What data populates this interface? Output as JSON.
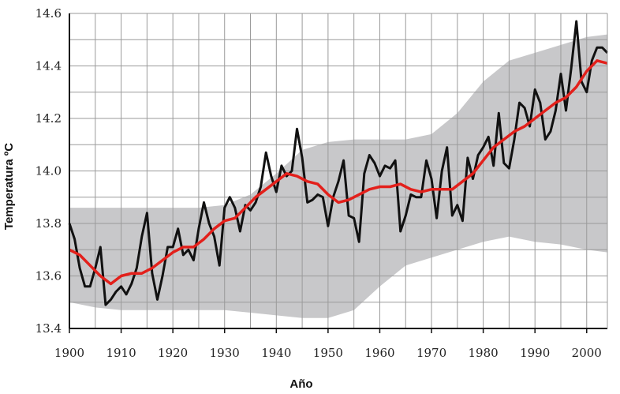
{
  "chart_data": {
    "type": "line",
    "title": "",
    "xlabel": "Año",
    "ylabel": "Temperatura ºC",
    "xlim": [
      1900,
      2004
    ],
    "ylim": [
      13.4,
      14.6
    ],
    "xticks": [
      "1900",
      "1910",
      "1920",
      "1930",
      "1940",
      "1950",
      "1960",
      "1970",
      "1980",
      "1990",
      "2000"
    ],
    "yticks": [
      "13.4",
      "13.6",
      "13.8",
      "14.0",
      "14.2",
      "14.4",
      "14.6"
    ],
    "grid": true,
    "colors": {
      "annual": "#111111",
      "smoothed": "#e3201b",
      "band": "#c8c8ca",
      "grid": "#9a9a9a"
    },
    "band": {
      "x": [
        1900,
        1905,
        1910,
        1915,
        1920,
        1925,
        1930,
        1935,
        1940,
        1945,
        1950,
        1955,
        1960,
        1965,
        1970,
        1975,
        1980,
        1985,
        1990,
        1995,
        2000,
        2004
      ],
      "upper": [
        13.86,
        13.86,
        13.86,
        13.86,
        13.86,
        13.86,
        13.87,
        13.91,
        13.99,
        14.08,
        14.11,
        14.12,
        14.12,
        14.12,
        14.14,
        14.22,
        14.34,
        14.42,
        14.45,
        14.48,
        14.51,
        14.52
      ],
      "lower": [
        13.5,
        13.48,
        13.47,
        13.47,
        13.47,
        13.47,
        13.47,
        13.46,
        13.45,
        13.44,
        13.44,
        13.47,
        13.56,
        13.64,
        13.67,
        13.7,
        13.73,
        13.75,
        13.73,
        13.72,
        13.7,
        13.69
      ]
    },
    "series": [
      {
        "x": [
          1900,
          1901,
          1902,
          1903,
          1904,
          1905,
          1906,
          1907,
          1908,
          1909,
          1910,
          1911,
          1912,
          1913,
          1914,
          1915,
          1916,
          1917,
          1918,
          1919,
          1920,
          1921,
          1922,
          1923,
          1924,
          1925,
          1926,
          1927,
          1928,
          1929,
          1930,
          1931,
          1932,
          1933,
          1934,
          1935,
          1936,
          1937,
          1938,
          1939,
          1940,
          1941,
          1942,
          1943,
          1944,
          1945,
          1946,
          1947,
          1948,
          1949,
          1950,
          1951,
          1952,
          1953,
          1954,
          1955,
          1956,
          1957,
          1958,
          1959,
          1960,
          1961,
          1962,
          1963,
          1964,
          1965,
          1966,
          1967,
          1968,
          1969,
          1970,
          1971,
          1972,
          1973,
          1974,
          1975,
          1976,
          1977,
          1978,
          1979,
          1980,
          1981,
          1982,
          1983,
          1984,
          1985,
          1986,
          1987,
          1988,
          1989,
          1990,
          1991,
          1992,
          1993,
          1994,
          1995,
          1996,
          1997,
          1998,
          1999,
          2000,
          2001,
          2002,
          2003,
          2004
        ],
        "values": [
          13.8,
          13.74,
          13.63,
          13.56,
          13.56,
          13.63,
          13.71,
          13.49,
          13.51,
          13.54,
          13.56,
          13.53,
          13.57,
          13.63,
          13.75,
          13.84,
          13.61,
          13.51,
          13.6,
          13.71,
          13.71,
          13.78,
          13.68,
          13.7,
          13.66,
          13.78,
          13.88,
          13.8,
          13.75,
          13.64,
          13.86,
          13.9,
          13.86,
          13.77,
          13.87,
          13.85,
          13.88,
          13.94,
          14.07,
          13.98,
          13.92,
          14.02,
          13.98,
          14.0,
          14.16,
          14.05,
          13.88,
          13.89,
          13.91,
          13.9,
          13.79,
          13.9,
          13.96,
          14.04,
          13.83,
          13.82,
          13.73,
          13.99,
          14.06,
          14.03,
          13.98,
          14.02,
          14.01,
          14.04,
          13.77,
          13.83,
          13.91,
          13.9,
          13.9,
          14.04,
          13.97,
          13.82,
          14.0,
          14.09,
          13.83,
          13.87,
          13.81,
          14.05,
          13.97,
          14.06,
          14.09,
          14.13,
          14.02,
          14.22,
          14.03,
          14.01,
          14.12,
          14.26,
          14.24,
          14.17,
          14.31,
          14.26,
          14.12,
          14.15,
          14.23,
          14.37,
          14.23,
          14.39,
          14.57,
          14.34,
          14.3,
          14.42,
          14.47,
          14.47,
          14.45
        ]
      },
      {
        "x": [
          1900,
          1902,
          1904,
          1906,
          1908,
          1910,
          1912,
          1914,
          1916,
          1918,
          1920,
          1922,
          1924,
          1926,
          1928,
          1930,
          1932,
          1934,
          1936,
          1938,
          1940,
          1942,
          1944,
          1946,
          1948,
          1950,
          1952,
          1954,
          1956,
          1958,
          1960,
          1962,
          1964,
          1966,
          1968,
          1970,
          1972,
          1974,
          1976,
          1978,
          1980,
          1982,
          1984,
          1986,
          1988,
          1990,
          1992,
          1994,
          1996,
          1998,
          2000,
          2002,
          2004
        ],
        "values": [
          13.7,
          13.68,
          13.64,
          13.6,
          13.57,
          13.6,
          13.61,
          13.61,
          13.63,
          13.66,
          13.69,
          13.71,
          13.71,
          13.74,
          13.78,
          13.81,
          13.82,
          13.86,
          13.9,
          13.93,
          13.96,
          13.99,
          13.98,
          13.96,
          13.95,
          13.91,
          13.88,
          13.89,
          13.91,
          13.93,
          13.94,
          13.94,
          13.95,
          13.93,
          13.92,
          13.93,
          13.93,
          13.93,
          13.96,
          13.99,
          14.04,
          14.09,
          14.12,
          14.15,
          14.17,
          14.2,
          14.23,
          14.26,
          14.28,
          14.32,
          14.38,
          14.42,
          14.41
        ]
      }
    ]
  }
}
